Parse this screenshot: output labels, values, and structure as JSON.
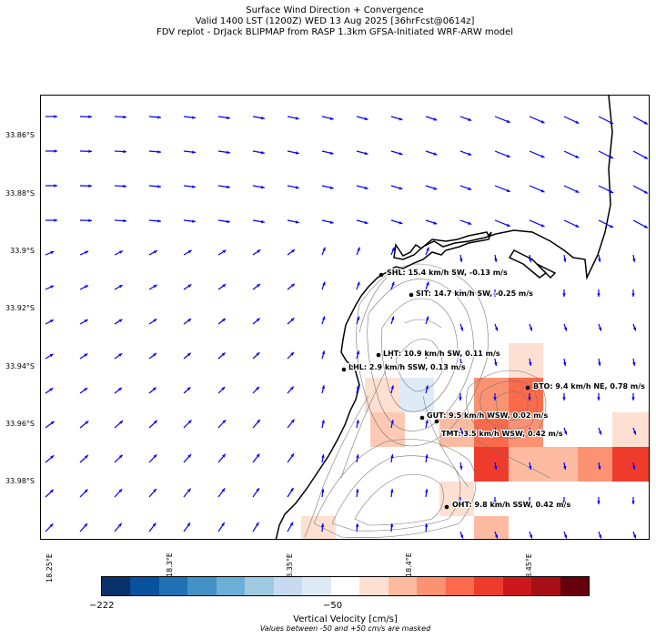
{
  "title": {
    "line1": "Surface Wind Direction + Convergence",
    "line2": "Valid 1400 LST (1200Z) WED 13 Aug 2025 [36hrFcst@0614z]",
    "line3": "FDV replot - DrJack BLIPMAP from RASP 1.3km GFSA-Initiated WRF-ARW model"
  },
  "latitude_labels": [
    "33.86°S",
    "33.88°S",
    "33.9°S",
    "33.92°S",
    "33.94°S",
    "33.96°S",
    "33.98°S"
  ],
  "longitude_labels": [
    "18.25°E",
    "18.3°E",
    "18.35°E",
    "18.4°E",
    "18.45°E"
  ],
  "stations": [
    {
      "id": "SHL",
      "label": "SHL: 15.4 km/h SW, -0.13 m/s"
    },
    {
      "id": "SIT",
      "label": "SIT: 14.7 km/h SW, -0.25 m/s"
    },
    {
      "id": "LHT",
      "label": "LHT: 10.9 km/h SW, 0.11 m/s"
    },
    {
      "id": "LHL",
      "label": "LHL: 2.9 km/h SSW, 0.13 m/s"
    },
    {
      "id": "BTO",
      "label": "BTO: 9.4 km/h NE, 0.78 m/s"
    },
    {
      "id": "GUT",
      "label": "GUT: 9.5 km/h WSW, 0.02 m/s"
    },
    {
      "id": "TMT",
      "label": "TMT: 3.5 km/h WSW, 0.42 m/s"
    },
    {
      "id": "OHT",
      "label": "OHT: 9.8 km/h SSW, 0.42 m/s"
    }
  ],
  "colorbar": {
    "label": "Vertical Velocity [cm/s]",
    "note": "Values between -50 and +50 cm/s are masked",
    "tick_min": "−222",
    "tick_mid": "−50",
    "colors": [
      "#08306b",
      "#08519c",
      "#2171b5",
      "#4292c6",
      "#6baed6",
      "#9ecae1",
      "#c6dbef",
      "#deebf7",
      "#ffffff",
      "#fee0d2",
      "#fcbba1",
      "#fc9272",
      "#fb6a4a",
      "#ef3b2c",
      "#cb181d",
      "#a50f15",
      "#67000d"
    ]
  },
  "arrow_color": "#0000ff"
}
